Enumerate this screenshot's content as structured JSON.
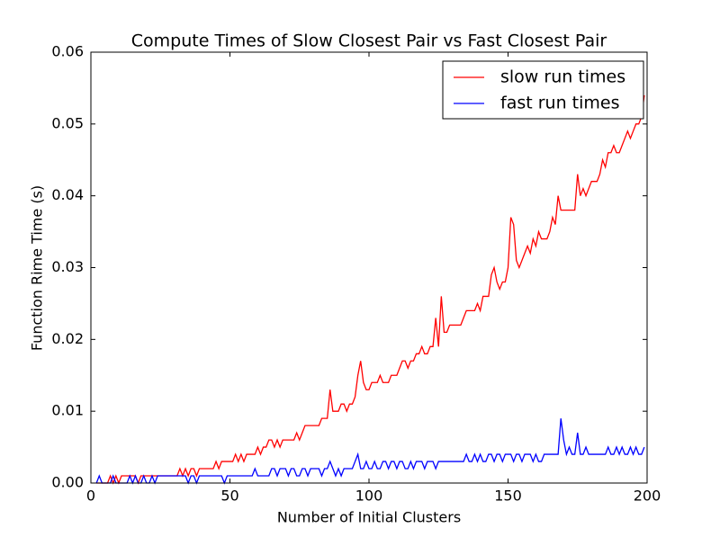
{
  "chart_data": {
    "type": "line",
    "title": "Compute Times of Slow Closest Pair vs Fast Closest Pair",
    "x_label": "Number of Initial Clusters",
    "y_label": "Function Rime Time (s)",
    "xlim": [
      0,
      200
    ],
    "ylim": [
      0,
      0.06
    ],
    "xticks": [
      0,
      50,
      100,
      150,
      200
    ],
    "yticks": [
      {
        "value": 0,
        "label": "0.00"
      },
      {
        "value": 0.01,
        "label": "0.01"
      },
      {
        "value": 0.02,
        "label": "0.02"
      },
      {
        "value": 0.03,
        "label": "0.03"
      },
      {
        "value": 0.04,
        "label": "0.04"
      },
      {
        "value": 0.05,
        "label": "0.05"
      },
      {
        "value": 0.06,
        "label": "0.06"
      }
    ],
    "legend": "upper right",
    "x": [
      2,
      3,
      4,
      5,
      6,
      7,
      8,
      9,
      10,
      11,
      12,
      13,
      14,
      15,
      16,
      17,
      18,
      19,
      20,
      21,
      22,
      23,
      24,
      25,
      26,
      27,
      28,
      29,
      30,
      31,
      32,
      33,
      34,
      35,
      36,
      37,
      38,
      39,
      40,
      41,
      42,
      43,
      44,
      45,
      46,
      47,
      48,
      49,
      50,
      51,
      52,
      53,
      54,
      55,
      56,
      57,
      58,
      59,
      60,
      61,
      62,
      63,
      64,
      65,
      66,
      67,
      68,
      69,
      70,
      71,
      72,
      73,
      74,
      75,
      76,
      77,
      78,
      79,
      80,
      81,
      82,
      83,
      84,
      85,
      86,
      87,
      88,
      89,
      90,
      91,
      92,
      93,
      94,
      95,
      96,
      97,
      98,
      99,
      100,
      101,
      102,
      103,
      104,
      105,
      106,
      107,
      108,
      109,
      110,
      111,
      112,
      113,
      114,
      115,
      116,
      117,
      118,
      119,
      120,
      121,
      122,
      123,
      124,
      125,
      126,
      127,
      128,
      129,
      130,
      131,
      132,
      133,
      134,
      135,
      136,
      137,
      138,
      139,
      140,
      141,
      142,
      143,
      144,
      145,
      146,
      147,
      148,
      149,
      150,
      151,
      152,
      153,
      154,
      155,
      156,
      157,
      158,
      159,
      160,
      161,
      162,
      163,
      164,
      165,
      166,
      167,
      168,
      169,
      170,
      171,
      172,
      173,
      174,
      175,
      176,
      177,
      178,
      179,
      180,
      181,
      182,
      183,
      184,
      185,
      186,
      187,
      188,
      189,
      190,
      191,
      192,
      193,
      194,
      195,
      196,
      197,
      198,
      199
    ],
    "series": [
      {
        "name": "slow run times",
        "color": "#ff0000",
        "values": [
          0,
          0,
          0,
          0,
          0,
          0.001,
          0,
          0.001,
          0,
          0.001,
          0.001,
          0.001,
          0.001,
          0.001,
          0.001,
          0,
          0.001,
          0.001,
          0.001,
          0.001,
          0.001,
          0.001,
          0.001,
          0.001,
          0.001,
          0.001,
          0.001,
          0.001,
          0.001,
          0.001,
          0.002,
          0.001,
          0.002,
          0.001,
          0.002,
          0.002,
          0.001,
          0.002,
          0.002,
          0.002,
          0.002,
          0.002,
          0.002,
          0.003,
          0.002,
          0.003,
          0.003,
          0.003,
          0.003,
          0.003,
          0.004,
          0.003,
          0.004,
          0.003,
          0.004,
          0.004,
          0.004,
          0.004,
          0.005,
          0.004,
          0.005,
          0.005,
          0.006,
          0.006,
          0.005,
          0.006,
          0.005,
          0.006,
          0.006,
          0.006,
          0.006,
          0.006,
          0.007,
          0.006,
          0.007,
          0.008,
          0.008,
          0.008,
          0.008,
          0.008,
          0.008,
          0.009,
          0.009,
          0.009,
          0.013,
          0.01,
          0.01,
          0.01,
          0.011,
          0.011,
          0.01,
          0.011,
          0.011,
          0.012,
          0.015,
          0.017,
          0.014,
          0.013,
          0.013,
          0.014,
          0.014,
          0.014,
          0.015,
          0.014,
          0.014,
          0.014,
          0.015,
          0.015,
          0.015,
          0.016,
          0.017,
          0.017,
          0.016,
          0.017,
          0.017,
          0.018,
          0.018,
          0.019,
          0.018,
          0.018,
          0.019,
          0.019,
          0.023,
          0.019,
          0.026,
          0.021,
          0.021,
          0.022,
          0.022,
          0.022,
          0.022,
          0.022,
          0.023,
          0.024,
          0.024,
          0.024,
          0.024,
          0.025,
          0.024,
          0.026,
          0.026,
          0.026,
          0.029,
          0.03,
          0.028,
          0.027,
          0.028,
          0.028,
          0.03,
          0.037,
          0.036,
          0.031,
          0.03,
          0.031,
          0.032,
          0.033,
          0.032,
          0.034,
          0.033,
          0.035,
          0.034,
          0.034,
          0.034,
          0.035,
          0.037,
          0.036,
          0.04,
          0.038,
          0.038,
          0.038,
          0.038,
          0.038,
          0.038,
          0.043,
          0.04,
          0.041,
          0.04,
          0.041,
          0.042,
          0.042,
          0.042,
          0.043,
          0.045,
          0.044,
          0.046,
          0.046,
          0.047,
          0.046,
          0.046,
          0.047,
          0.048,
          0.049,
          0.048,
          0.049,
          0.05,
          0.05,
          0.051,
          0.054
        ]
      },
      {
        "name": "fast run times",
        "color": "#0000ff",
        "values": [
          0,
          0.001,
          0,
          0,
          0,
          0,
          0.001,
          0,
          0,
          0,
          0,
          0,
          0.001,
          0,
          0.001,
          0,
          0,
          0.001,
          0,
          0,
          0.001,
          0,
          0.001,
          0.001,
          0.001,
          0.001,
          0.001,
          0.001,
          0.001,
          0.001,
          0.001,
          0.001,
          0.001,
          0,
          0.001,
          0.001,
          0,
          0.001,
          0.001,
          0.001,
          0.001,
          0.001,
          0.001,
          0.001,
          0.001,
          0.001,
          0,
          0.001,
          0.001,
          0.001,
          0.001,
          0.001,
          0.001,
          0.001,
          0.001,
          0.001,
          0.001,
          0.002,
          0.001,
          0.001,
          0.001,
          0.001,
          0.001,
          0.002,
          0.002,
          0.001,
          0.002,
          0.002,
          0.002,
          0.001,
          0.002,
          0.002,
          0.001,
          0.001,
          0.002,
          0.002,
          0.001,
          0.002,
          0.002,
          0.002,
          0.002,
          0.001,
          0.002,
          0.002,
          0.003,
          0.002,
          0.001,
          0.002,
          0.001,
          0.002,
          0.002,
          0.002,
          0.002,
          0.003,
          0.004,
          0.002,
          0.002,
          0.003,
          0.002,
          0.002,
          0.003,
          0.002,
          0.002,
          0.003,
          0.003,
          0.002,
          0.003,
          0.003,
          0.002,
          0.003,
          0.003,
          0.002,
          0.002,
          0.003,
          0.002,
          0.003,
          0.003,
          0.003,
          0.002,
          0.003,
          0.003,
          0.003,
          0.002,
          0.003,
          0.003,
          0.003,
          0.003,
          0.003,
          0.003,
          0.003,
          0.003,
          0.003,
          0.003,
          0.004,
          0.003,
          0.003,
          0.004,
          0.003,
          0.004,
          0.003,
          0.003,
          0.004,
          0.004,
          0.003,
          0.004,
          0.004,
          0.003,
          0.004,
          0.004,
          0.004,
          0.003,
          0.004,
          0.004,
          0.003,
          0.004,
          0.004,
          0.004,
          0.003,
          0.004,
          0.003,
          0.003,
          0.004,
          0.004,
          0.004,
          0.004,
          0.004,
          0.004,
          0.009,
          0.006,
          0.004,
          0.005,
          0.004,
          0.004,
          0.007,
          0.004,
          0.004,
          0.005,
          0.004,
          0.004,
          0.004,
          0.004,
          0.004,
          0.004,
          0.004,
          0.005,
          0.004,
          0.004,
          0.005,
          0.004,
          0.005,
          0.004,
          0.004,
          0.005,
          0.004,
          0.005,
          0.004,
          0.004,
          0.005
        ]
      }
    ]
  }
}
